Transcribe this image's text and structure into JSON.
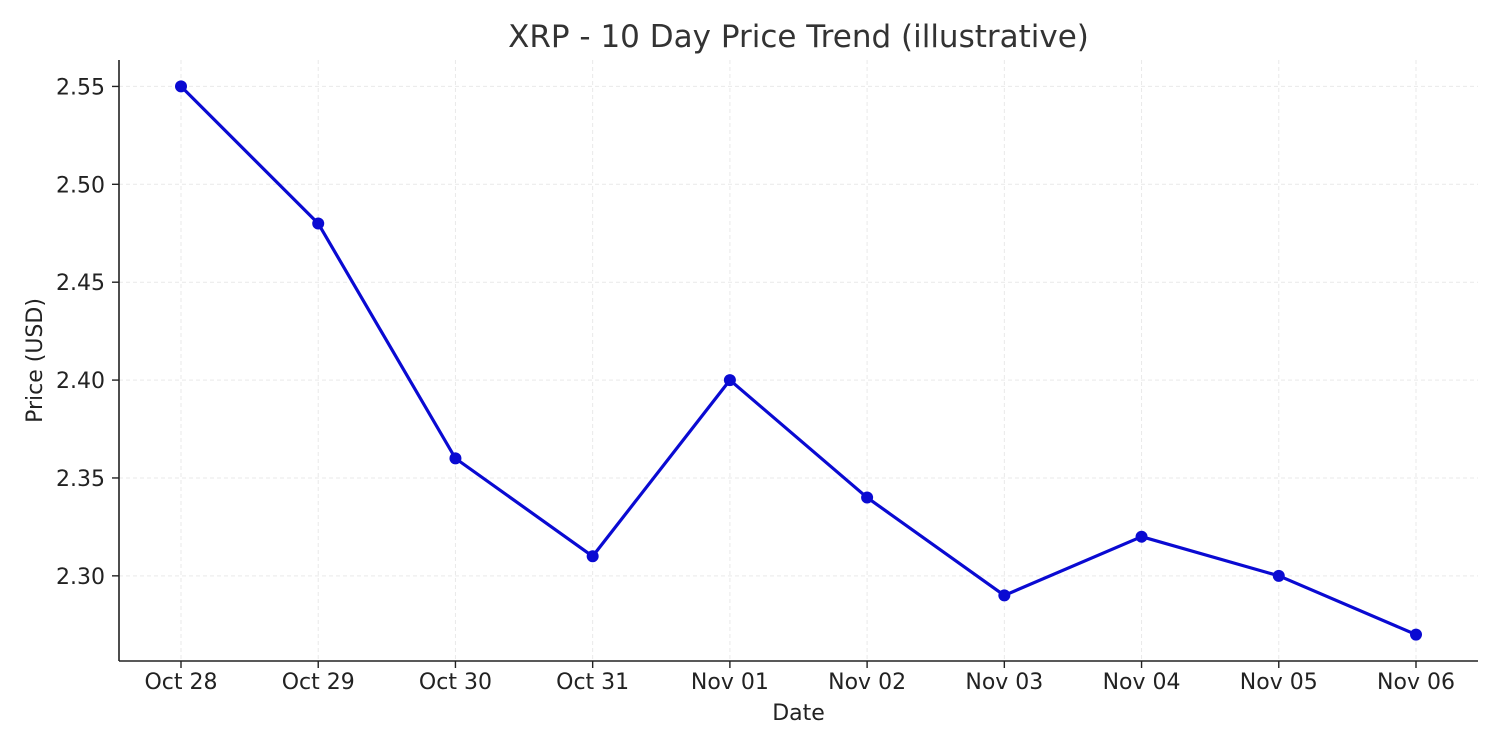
{
  "chart_data": {
    "type": "line",
    "title": "XRP - 10 Day Price Trend (illustrative)",
    "xlabel": "Date",
    "ylabel": "Price (USD)",
    "categories": [
      "Oct 28",
      "Oct 29",
      "Oct 30",
      "Oct 31",
      "Nov 01",
      "Nov 02",
      "Nov 03",
      "Nov 04",
      "Nov 05",
      "Nov 06"
    ],
    "series": [
      {
        "values": [
          2.55,
          2.48,
          2.36,
          2.31,
          2.4,
          2.34,
          2.29,
          2.32,
          2.3,
          2.27
        ],
        "color": "#0a0ad2",
        "marker": "circle"
      }
    ],
    "yticks": [
      "2.30",
      "2.35",
      "2.40",
      "2.45",
      "2.50",
      "2.55"
    ],
    "ylim": [
      2.2565,
      2.5635
    ],
    "grid": true,
    "legend": "none"
  }
}
